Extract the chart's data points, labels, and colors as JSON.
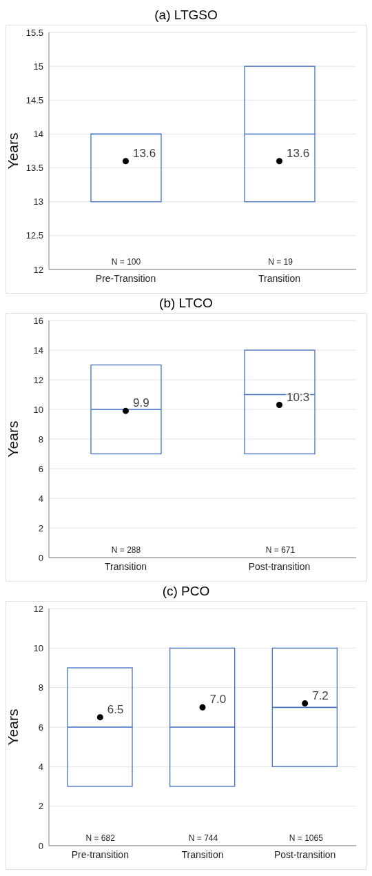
{
  "chart_data": [
    {
      "type": "box",
      "title": "(a) LTGSO",
      "ylabel": "Years",
      "categories": [
        "Pre-Transition",
        "Transition"
      ],
      "ylim": [
        12,
        15.5
      ],
      "yticks": [
        12,
        12.5,
        13,
        13.5,
        14,
        14.5,
        15,
        15.5
      ],
      "grid": "y",
      "annotations": [
        "N = 100",
        "N = 19"
      ],
      "series": [
        {
          "color": "#4472c4",
          "boxes": [
            {
              "low": 13,
              "q1": 13,
              "median": 14,
              "q3": 14,
              "high": 14
            },
            {
              "low": 13,
              "q1": 13,
              "median": 14,
              "q3": 15,
              "high": 15
            }
          ]
        },
        {
          "type": "scatter",
          "color": "#000000",
          "marker": "circle",
          "values": [
            13.6,
            13.6
          ],
          "value_labels": [
            "13.6",
            "13.6"
          ]
        }
      ]
    },
    {
      "type": "box",
      "title": "(b) LTCO",
      "ylabel": "Years",
      "categories": [
        "Transition",
        "Post-transition"
      ],
      "ylim": [
        0,
        16
      ],
      "yticks": [
        0,
        2,
        4,
        6,
        8,
        10,
        12,
        14,
        16
      ],
      "grid": "y",
      "annotations": [
        "N = 288",
        "N = 671"
      ],
      "series": [
        {
          "color": "#4472c4",
          "boxes": [
            {
              "low": 7,
              "q1": 7,
              "median": 10,
              "q3": 13,
              "high": 13
            },
            {
              "low": 7,
              "q1": 7,
              "median": 11,
              "q3": 14,
              "high": 14
            }
          ]
        },
        {
          "type": "scatter",
          "color": "#000000",
          "marker": "circle",
          "values": [
            9.9,
            10.3
          ],
          "value_labels": [
            "9.9",
            "10.3"
          ]
        }
      ]
    },
    {
      "type": "box",
      "title": "(c) PCO",
      "ylabel": "Years",
      "categories": [
        "Pre-transition",
        "Transition",
        "Post-transition"
      ],
      "ylim": [
        0,
        12
      ],
      "yticks": [
        0,
        2,
        4,
        6,
        8,
        10,
        12
      ],
      "grid": "y",
      "annotations": [
        "N = 682",
        "N = 744",
        "N = 1065"
      ],
      "series": [
        {
          "color": "#4472c4",
          "boxes": [
            {
              "low": 3,
              "q1": 3,
              "median": 6,
              "q3": 9,
              "high": 9
            },
            {
              "low": 3,
              "q1": 3,
              "median": 6,
              "q3": 10,
              "high": 10
            },
            {
              "low": 4,
              "q1": 4,
              "median": 7,
              "q3": 10,
              "high": 10
            }
          ]
        },
        {
          "type": "scatter",
          "color": "#000000",
          "marker": "circle",
          "values": [
            6.5,
            7.0,
            7.2
          ],
          "value_labels": [
            "6.5",
            "7.0",
            "7.2"
          ]
        }
      ]
    }
  ]
}
